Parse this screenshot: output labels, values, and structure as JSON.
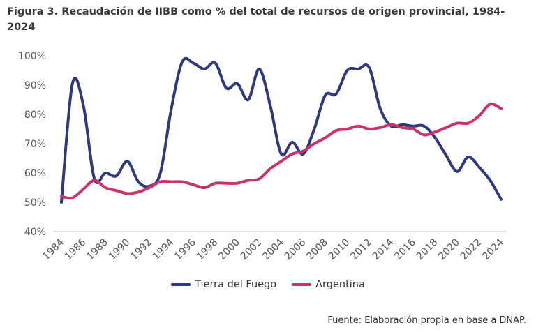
{
  "title": "Figura 3. Recaudación de IIBB como % del total de recursos de origen provincial, 1984-2024",
  "source": "Fuente: Elaboración propia en base a DNAP.",
  "chart_data": {
    "type": "line",
    "title": "Figura 3. Recaudación de IIBB como % del total de recursos de origen provincial, 1984-2024",
    "x": [
      1984,
      1985,
      1986,
      1987,
      1988,
      1989,
      1990,
      1991,
      1992,
      1993,
      1994,
      1995,
      1996,
      1997,
      1998,
      1999,
      2000,
      2001,
      2002,
      2003,
      2004,
      2005,
      2006,
      2007,
      2008,
      2009,
      2010,
      2011,
      2012,
      2013,
      2014,
      2015,
      2016,
      2017,
      2018,
      2019,
      2020,
      2021,
      2022,
      2023,
      2024
    ],
    "xticks": [
      "1984",
      "1986",
      "1988",
      "1990",
      "1992",
      "1994",
      "1996",
      "1998",
      "2000",
      "2002",
      "2004",
      "2006",
      "2008",
      "2010",
      "2012",
      "2014",
      "2016",
      "2018",
      "2020",
      "2022",
      "2024"
    ],
    "yticks": [
      "40%",
      "50%",
      "60%",
      "70%",
      "80%",
      "90%",
      "100%"
    ],
    "ylim": [
      40,
      100
    ],
    "xlim": [
      1984,
      2024
    ],
    "grid": false,
    "legend": "bottom",
    "series": [
      {
        "name": "Tierra del Fuego",
        "color": "#2e3a7a",
        "values": [
          50,
          90.5,
          83,
          58,
          60,
          59,
          64,
          57,
          55.5,
          60,
          82,
          98,
          97.5,
          95.5,
          97.5,
          89,
          90.5,
          85,
          95.5,
          83,
          66.5,
          70.5,
          66.5,
          75,
          86.5,
          87,
          95,
          95.5,
          96,
          82,
          76,
          76.5,
          76,
          76,
          72,
          66,
          60.5,
          65.5,
          62,
          57.5,
          51
        ]
      },
      {
        "name": "Argentina",
        "color": "#c8336e",
        "values": [
          52,
          51.5,
          54.5,
          57.5,
          55,
          54,
          53,
          53.5,
          55,
          57,
          57,
          57,
          56,
          55,
          56.5,
          56.5,
          56.5,
          57.5,
          58,
          61.5,
          64,
          66.5,
          67.5,
          70,
          72,
          74.5,
          75,
          76,
          75,
          75.5,
          76.5,
          75.5,
          75,
          73,
          74,
          75.5,
          77,
          77,
          79.5,
          83.5,
          82
        ]
      }
    ]
  }
}
